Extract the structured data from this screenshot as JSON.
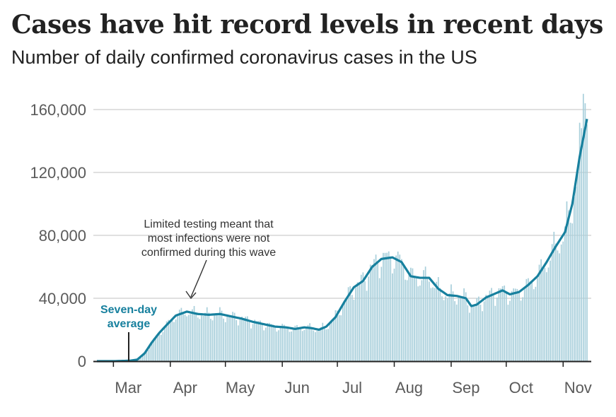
{
  "title": "Cases have hit record levels in recent days",
  "subtitle": "Number of daily confirmed coronavirus cases in the US",
  "colors": {
    "bar": "#a8cfdb",
    "line": "#17809e",
    "grid": "#c2c2c2",
    "axis": "#222222",
    "text": "#5a5a5a"
  },
  "chart_data": {
    "type": "bar",
    "x_start": "2020-02-21",
    "x_end": "2020-11-14",
    "x_ticks": [
      "Mar",
      "Apr",
      "May",
      "Jun",
      "Jul",
      "Aug",
      "Sep",
      "Oct",
      "Nov"
    ],
    "y_ticks": [
      "0",
      "40,000",
      "80,000",
      "120,000",
      "160,000"
    ],
    "ylim": [
      0,
      170000
    ],
    "grid": true,
    "legend_label_line1": "Seven-day",
    "legend_label_line2": "average",
    "annotation": [
      "Limited testing meant that",
      "most infections were not",
      "confirmed during this wave"
    ],
    "series": [
      {
        "name": "Daily confirmed cases",
        "mark": "bar"
      },
      {
        "name": "Seven-day average",
        "mark": "line"
      }
    ],
    "average_knots": [
      [
        "2020-02-21",
        0
      ],
      [
        "2020-03-01",
        0
      ],
      [
        "2020-03-10",
        300
      ],
      [
        "2020-03-14",
        1000
      ],
      [
        "2020-03-18",
        5000
      ],
      [
        "2020-03-22",
        12000
      ],
      [
        "2020-03-26",
        18000
      ],
      [
        "2020-03-30",
        23000
      ],
      [
        "2020-04-04",
        29000
      ],
      [
        "2020-04-10",
        31500
      ],
      [
        "2020-04-16",
        30000
      ],
      [
        "2020-04-22",
        29500
      ],
      [
        "2020-04-28",
        30000
      ],
      [
        "2020-05-04",
        28500
      ],
      [
        "2020-05-10",
        27000
      ],
      [
        "2020-05-16",
        25000
      ],
      [
        "2020-05-22",
        23500
      ],
      [
        "2020-05-28",
        22000
      ],
      [
        "2020-06-03",
        21500
      ],
      [
        "2020-06-08",
        20500
      ],
      [
        "2020-06-13",
        21500
      ],
      [
        "2020-06-17",
        21000
      ],
      [
        "2020-06-21",
        20000
      ],
      [
        "2020-06-25",
        22000
      ],
      [
        "2020-06-30",
        28000
      ],
      [
        "2020-07-05",
        38000
      ],
      [
        "2020-07-10",
        47000
      ],
      [
        "2020-07-15",
        51000
      ],
      [
        "2020-07-20",
        60000
      ],
      [
        "2020-07-25",
        65000
      ],
      [
        "2020-07-31",
        66000
      ],
      [
        "2020-08-05",
        63000
      ],
      [
        "2020-08-10",
        54000
      ],
      [
        "2020-08-15",
        53000
      ],
      [
        "2020-08-20",
        53000
      ],
      [
        "2020-08-25",
        46000
      ],
      [
        "2020-08-30",
        42000
      ],
      [
        "2020-09-04",
        41500
      ],
      [
        "2020-09-09",
        40000
      ],
      [
        "2020-09-12",
        35000
      ],
      [
        "2020-09-15",
        36000
      ],
      [
        "2020-09-20",
        40500
      ],
      [
        "2020-09-25",
        43000
      ],
      [
        "2020-09-29",
        45000
      ],
      [
        "2020-10-03",
        42500
      ],
      [
        "2020-10-08",
        44000
      ],
      [
        "2020-10-13",
        48500
      ],
      [
        "2020-10-18",
        54000
      ],
      [
        "2020-10-23",
        63000
      ],
      [
        "2020-10-28",
        73000
      ],
      [
        "2020-11-02",
        82000
      ],
      [
        "2020-11-06",
        100000
      ],
      [
        "2020-11-10",
        130000
      ],
      [
        "2020-11-14",
        154000
      ]
    ],
    "daily_peaks": [
      [
        "2020-11-12",
        170000
      ],
      [
        "2020-11-13",
        164000
      ]
    ]
  }
}
